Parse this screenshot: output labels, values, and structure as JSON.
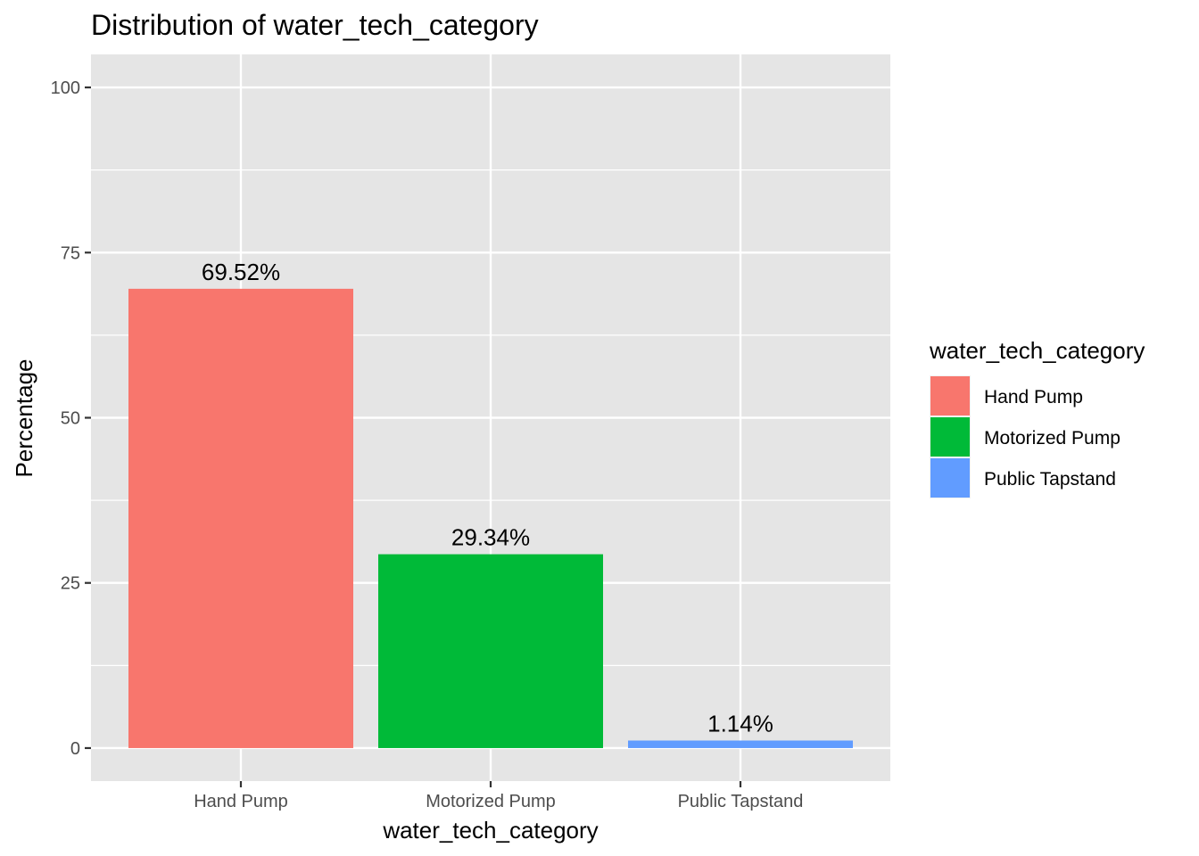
{
  "chart_data": {
    "type": "bar",
    "title": "Distribution of water_tech_category",
    "xlabel": "water_tech_category",
    "ylabel": "Percentage",
    "categories": [
      "Hand Pump",
      "Motorized Pump",
      "Public Tapstand"
    ],
    "values": [
      69.52,
      29.34,
      1.14
    ],
    "data_labels": [
      "69.52%",
      "29.34%",
      "1.14%"
    ],
    "colors": [
      "#F8766D",
      "#00BA38",
      "#619CFF"
    ],
    "ylim": [
      -5,
      105
    ],
    "yticks": [
      0,
      25,
      50,
      75,
      100
    ],
    "ytick_labels": [
      "0",
      "25",
      "50",
      "75",
      "100"
    ],
    "grid": true,
    "legend": {
      "title": "water_tech_category",
      "position": "right",
      "items": [
        "Hand Pump",
        "Motorized Pump",
        "Public Tapstand"
      ]
    }
  },
  "colors": {
    "panel_background": "#E5E5E5",
    "grid": "#FFFFFF",
    "tick": "#333333"
  }
}
